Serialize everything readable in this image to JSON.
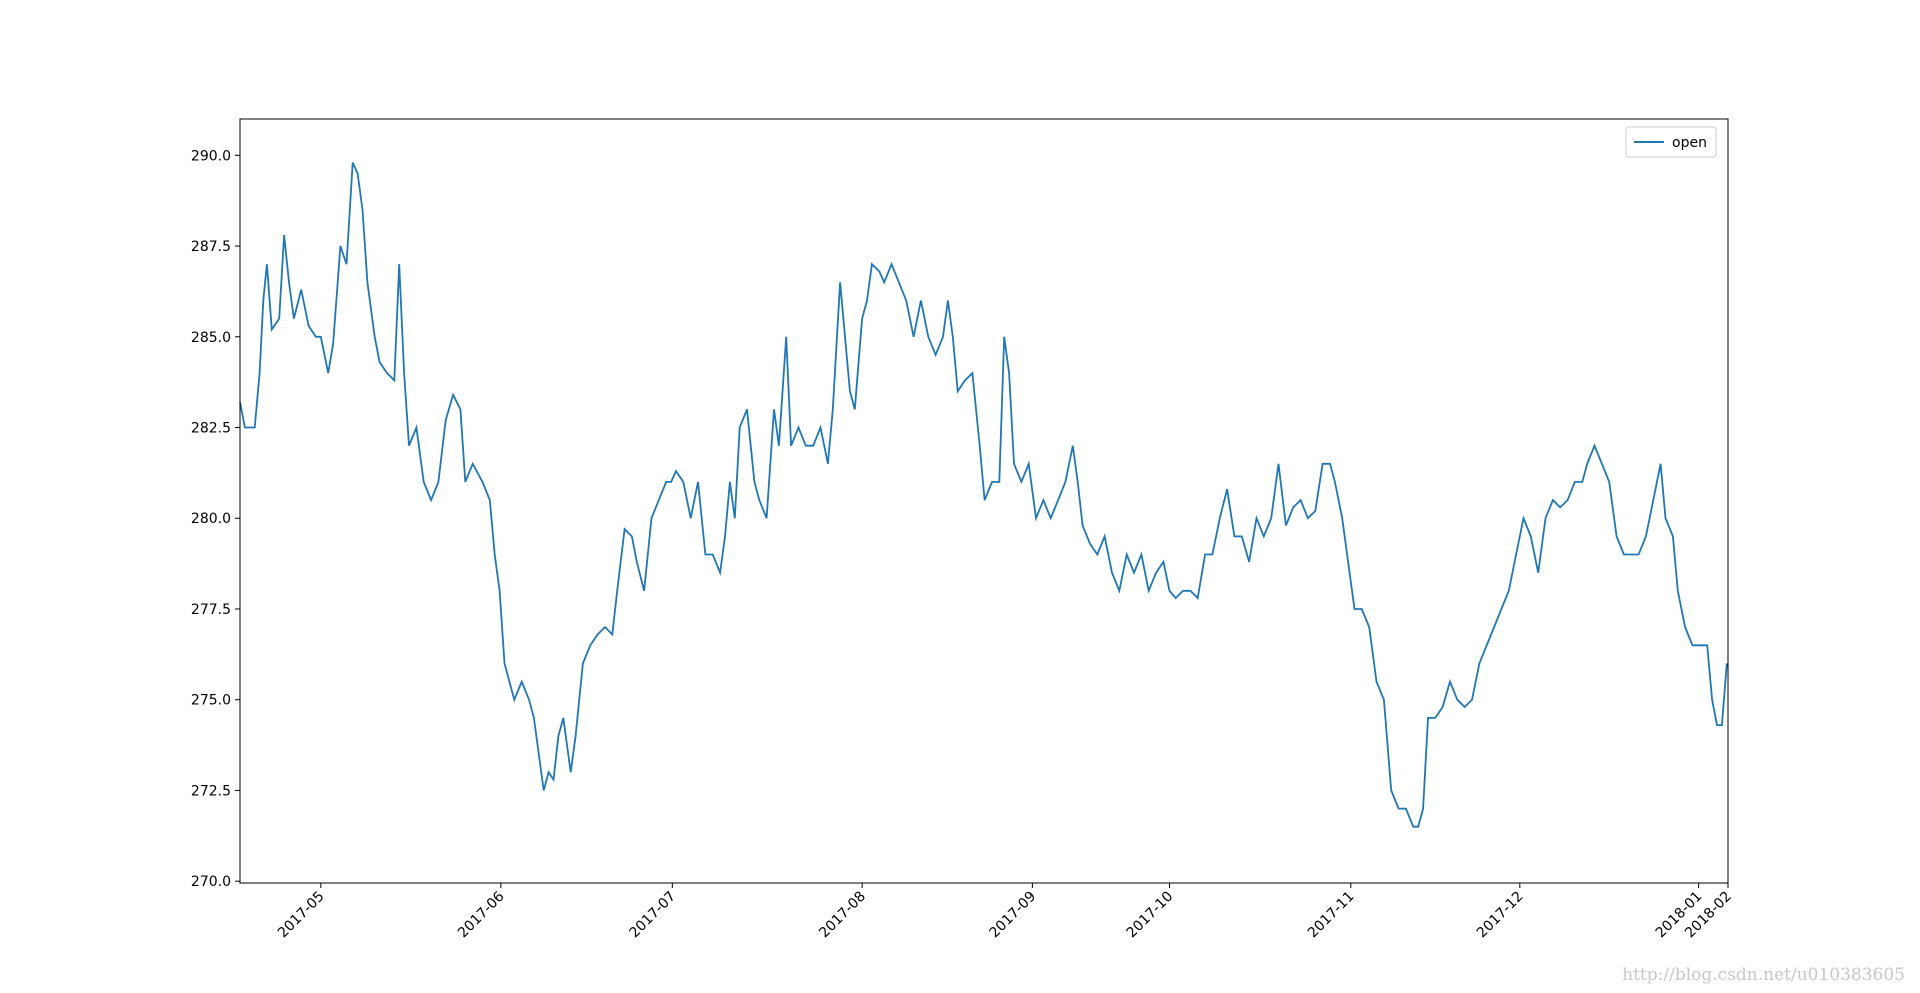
{
  "chart_data": {
    "type": "line",
    "x": [
      0,
      4,
      12,
      16,
      19,
      22,
      26,
      32,
      36,
      40,
      44,
      50,
      56,
      62,
      66,
      72,
      76,
      82,
      87,
      92,
      96,
      100,
      104,
      110,
      114,
      120,
      126,
      130,
      134,
      138,
      144,
      150,
      156,
      162,
      168,
      174,
      180,
      184,
      190,
      198,
      204,
      208,
      212,
      216,
      220,
      224,
      230,
      236,
      240,
      244,
      248,
      252,
      256,
      260,
      264,
      270,
      274,
      280,
      286,
      292,
      298,
      304,
      308,
      314,
      320,
      324,
      330,
      336,
      342,
      348,
      352,
      356,
      362,
      368,
      374,
      380,
      386,
      392,
      396,
      400,
      404,
      408,
      414,
      420,
      424,
      430,
      436,
      440,
      446,
      450,
      456,
      462,
      468,
      474,
      480,
      484,
      490,
      494,
      498,
      502,
      508,
      512,
      516,
      522,
      526,
      532,
      538,
      544,
      550,
      556,
      562,
      568,
      574,
      578,
      582,
      586,
      592,
      598,
      604,
      608,
      614,
      620,
      624,
      628,
      632,
      638,
      644,
      650,
      656,
      662,
      668,
      674,
      680,
      684,
      688,
      694,
      700,
      706,
      712,
      718,
      724,
      730,
      736,
      742,
      748,
      754,
      759,
      764,
      770,
      776,
      782,
      788,
      794,
      800,
      806,
      812,
      818,
      824,
      830,
      836,
      842,
      848,
      854,
      860,
      866,
      872,
      878,
      884,
      890,
      894,
      900,
      904,
      910,
      916,
      922,
      928,
      934,
      940,
      946,
      952,
      958,
      962,
      966,
      970,
      976,
      982,
      988,
      994,
      1000,
      1006,
      1012,
      1018,
      1024,
      1030,
      1036,
      1042,
      1048,
      1054,
      1060,
      1066,
      1072,
      1078,
      1084,
      1090,
      1096,
      1100,
      1106,
      1112,
      1118,
      1124,
      1130,
      1136,
      1142,
      1148,
      1154,
      1160,
      1164,
      1170,
      1174,
      1180,
      1186,
      1192,
      1198,
      1202,
      1206,
      1210,
      1214
    ],
    "series": [
      {
        "name": "open",
        "color": "#1f77b4",
        "values": [
          283.2,
          282.5,
          282.5,
          284,
          286,
          287,
          285.2,
          285.5,
          287.8,
          286.5,
          285.5,
          286.3,
          285.3,
          285,
          285,
          284,
          284.8,
          287.5,
          287,
          289.8,
          289.5,
          288.5,
          286.5,
          285,
          284.3,
          284,
          283.8,
          287,
          284,
          282,
          282.5,
          281,
          280.5,
          281,
          282.7,
          283.4,
          283,
          281,
          281.5,
          281,
          280.5,
          279,
          278,
          276,
          275.5,
          275,
          275.5,
          275,
          274.5,
          273.5,
          272.5,
          273,
          272.8,
          274,
          274.5,
          273,
          274,
          276,
          276.5,
          276.8,
          277,
          276.8,
          278,
          279.7,
          279.5,
          278.8,
          278,
          280,
          280.5,
          281,
          281,
          281.3,
          281,
          280,
          281,
          279,
          279,
          278.5,
          279.5,
          281,
          280,
          282.5,
          283,
          281,
          280.5,
          280,
          283,
          282,
          285,
          282,
          282.5,
          282,
          282,
          282.5,
          281.5,
          283,
          286.5,
          285,
          283.5,
          283,
          285.5,
          286,
          287,
          286.8,
          286.5,
          287,
          286.5,
          286,
          285,
          286,
          285,
          284.5,
          285,
          286,
          285,
          283.5,
          283.8,
          284,
          282,
          280.5,
          281,
          281,
          285,
          284,
          281.5,
          281,
          281.5,
          280,
          280.5,
          280,
          280.5,
          281,
          282,
          281,
          279.8,
          279.3,
          279,
          279.5,
          278.5,
          278,
          279,
          278.5,
          279,
          278,
          278.5,
          278.8,
          278,
          277.8,
          278,
          278,
          277.8,
          279,
          279,
          280,
          280.8,
          279.5,
          279.5,
          278.8,
          280,
          279.5,
          280,
          281.5,
          279.8,
          280.3,
          280.5,
          280,
          280.2,
          281.5,
          281.5,
          281,
          280,
          279,
          277.5,
          277.5,
          277,
          275.5,
          275,
          272.5,
          272,
          272,
          271.5,
          271.5,
          272,
          274.5,
          274.5,
          274.8,
          275.5,
          275,
          274.8,
          275,
          276,
          276.5,
          277,
          277.5,
          278,
          279,
          280,
          279.5,
          278.5,
          280,
          280.5,
          280.3,
          280.5,
          281,
          281,
          281.5,
          282,
          281.5,
          281,
          279.5,
          279,
          279,
          279,
          279.5,
          280.5,
          281.5,
          280,
          279.5,
          278,
          277,
          276.5,
          276.5,
          276.5,
          275,
          274.3,
          274.3,
          276
        ]
      }
    ],
    "xlim": [
      0,
      1215
    ],
    "xticks": [
      {
        "value": 66,
        "label": "2017-05"
      },
      {
        "value": 213,
        "label": "2017-06"
      },
      {
        "value": 353,
        "label": "2017-07"
      },
      {
        "value": 508,
        "label": "2017-08"
      },
      {
        "value": 647,
        "label": "2017-09"
      },
      {
        "value": 759,
        "label": "2017-10"
      },
      {
        "value": 907,
        "label": "2017-11"
      },
      {
        "value": 1045,
        "label": "2017-12"
      },
      {
        "value": 1191,
        "label": "2018-01"
      },
      {
        "value": 1215,
        "label": "2018-02"
      }
    ],
    "ylim": [
      269.95,
      291
    ],
    "yticks": [
      {
        "value": 270,
        "label": "270.0"
      },
      {
        "value": 272.5,
        "label": "272.5"
      },
      {
        "value": 275,
        "label": "275.0"
      },
      {
        "value": 277.5,
        "label": "277.5"
      },
      {
        "value": 280,
        "label": "280.0"
      },
      {
        "value": 282.5,
        "label": "282.5"
      },
      {
        "value": 285,
        "label": "285.0"
      },
      {
        "value": 287.5,
        "label": "287.5"
      },
      {
        "value": 290,
        "label": "290.0"
      }
    ],
    "legend": "upper right",
    "watermark": "http://blog.csdn.net/u010383605"
  }
}
